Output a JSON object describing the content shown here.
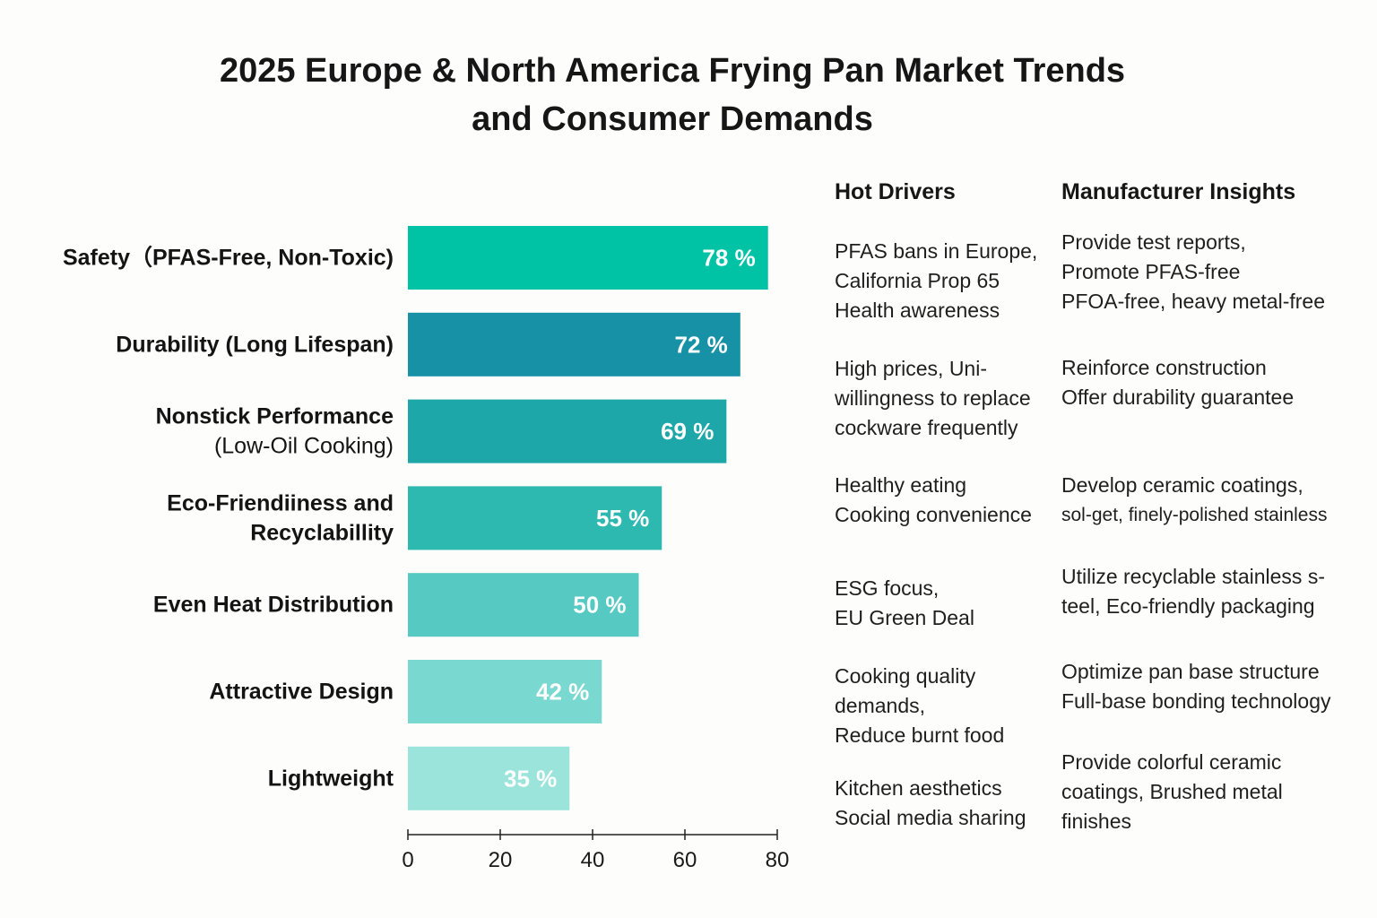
{
  "title": {
    "line1": "2025 Europe & North America Frying Pan Market Trends",
    "line2": "and Consumer Demands"
  },
  "columns": {
    "drivers_header": "Hot Drivers",
    "insights_header": "Manufacturer Insights"
  },
  "rows": [
    {
      "drivers": [
        "PFAS bans in Europe,",
        "California Prop 65",
        "Health awareness"
      ],
      "insights": [
        "Provide test reports,",
        "Promote PFAS-free",
        "PFOA-free, heavy metal-free"
      ]
    },
    {
      "drivers": [
        "High prices, Uni-",
        "willingness to replace",
        "cockware frequently"
      ],
      "insights": [
        "Reinforce construction",
        "Offer durability guarantee"
      ]
    },
    {
      "drivers": [
        "Healthy eating",
        "Cooking convenience"
      ],
      "insights": [
        "Develop ceramic coatings,",
        "sol-get, finely-polished stainless"
      ]
    },
    {
      "drivers": [
        "ESG focus,",
        "EU Green Deal"
      ],
      "insights": [
        "Utilize recyclable stainless s-",
        "teel, Eco-friendly packaging"
      ]
    },
    {
      "drivers": [
        "Cooking quality",
        "demands,",
        "Reduce burnt food"
      ],
      "insights": [
        "Optimize pan base structure",
        "Full-base bonding technology"
      ]
    },
    {
      "drivers": [
        "Kitchen aesthetics",
        "Social media sharing"
      ],
      "insights": [
        "Provide colorful ceramic",
        "coatings, Brushed metal",
        "finishes"
      ]
    }
  ],
  "chart_data": {
    "type": "bar",
    "orientation": "horizontal",
    "categories": [
      [
        "Safety（PFAS-Free, Non-Toxic)"
      ],
      [
        "Durability (Long Lifespan)"
      ],
      [
        "Nonstick Performance",
        "(Low-Oil Cooking)"
      ],
      [
        "Eco-Friendiiness and",
        "Recyclabillity"
      ],
      [
        "Even Heat Distribution"
      ],
      [
        "Attractive Design"
      ],
      [
        "Lightweight"
      ]
    ],
    "values": [
      78,
      72,
      69,
      55,
      50,
      42,
      35
    ],
    "value_labels": [
      "78 %",
      "72 %",
      "69 %",
      "55 %",
      "50 %",
      "42 %",
      "35 %"
    ],
    "colors": [
      "#00c3a6",
      "#1791a5",
      "#1ea7a8",
      "#2db8b0",
      "#56c9c2",
      "#79d8d0",
      "#9ae4db"
    ],
    "xlim": [
      0,
      80
    ],
    "x_ticks": [
      0,
      20,
      40,
      60,
      80
    ],
    "x_tick_labels": [
      "0",
      "20",
      "40",
      "60",
      "80"
    ],
    "axis_color": "#222222",
    "label_color": "#ffffff"
  }
}
